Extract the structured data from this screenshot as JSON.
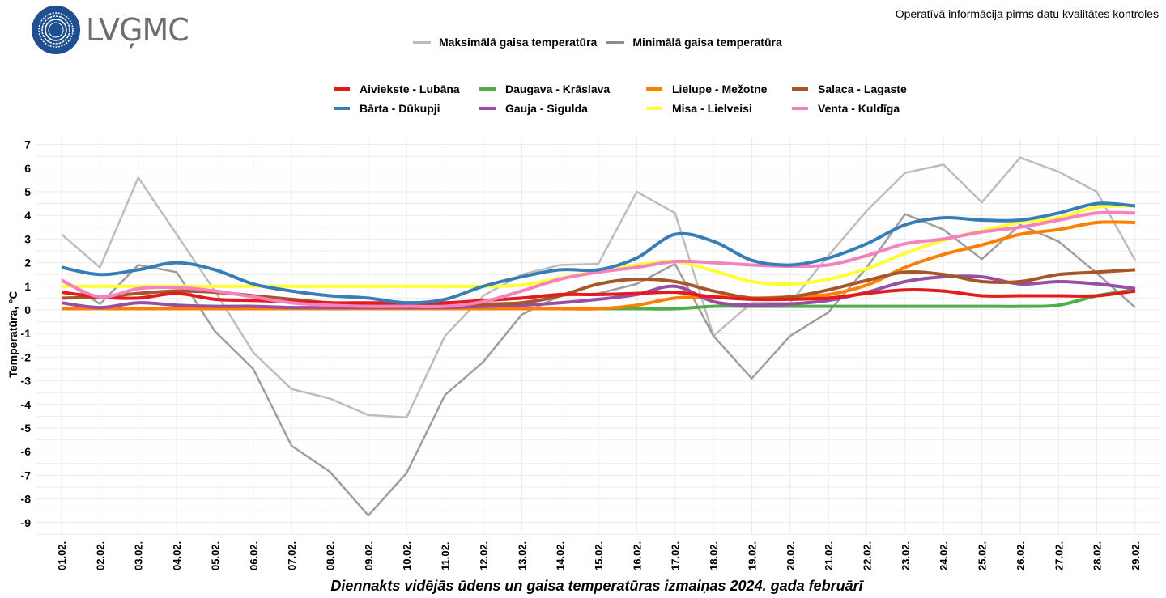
{
  "header": {
    "logo_text": "LVĢMC",
    "notice": "Operatīvā informācija pirms datu kvalitātes kontroles"
  },
  "chart_data": {
    "type": "line",
    "title": "Diennakts vidējās ūdens un gaisa temperatūras izmaiņas 2024. gada februārī",
    "xlabel": "Diennakts vidējās ūdens un gaisa temperatūras izmaiņas 2024. gada februārī",
    "ylabel": "Temperatūra, °C",
    "ylim": [
      -9.5,
      7.2
    ],
    "yticks": [
      7,
      6,
      5,
      4,
      3,
      2,
      1,
      0,
      -1,
      -2,
      -3,
      -4,
      -5,
      -6,
      -7,
      -8,
      -9
    ],
    "grid": true,
    "legend_position": "top",
    "categories": [
      "01.02.",
      "02.02.",
      "03.02.",
      "04.02.",
      "05.02.",
      "06.02.",
      "07.02.",
      "08.02.",
      "09.02.",
      "10.02.",
      "11.02.",
      "12.02.",
      "13.02.",
      "14.02.",
      "15.02.",
      "16.02.",
      "17.02.",
      "18.02.",
      "19.02.",
      "20.02.",
      "21.02.",
      "22.02.",
      "23.02.",
      "24.02.",
      "25.02.",
      "26.02.",
      "27.02.",
      "28.02.",
      "29.02."
    ],
    "air_series": [
      {
        "name": "Maksimālā gaisa temperatūra",
        "color": "#bdbdbd",
        "values": [
          3.2,
          1.8,
          5.6,
          3.2,
          0.8,
          -1.8,
          -3.35,
          -3.75,
          -4.45,
          -4.55,
          -1.1,
          0.6,
          1.5,
          1.9,
          1.95,
          5.0,
          4.1,
          -1.1,
          0.3,
          0.3,
          2.3,
          4.2,
          5.8,
          6.15,
          4.55,
          6.45,
          5.85,
          5.0,
          2.1
        ]
      },
      {
        "name": "Minimālā gaisa temperatūra",
        "color": "#9e9e9e",
        "values": [
          1.3,
          0.25,
          1.9,
          1.6,
          -0.9,
          -2.5,
          -5.75,
          -6.85,
          -8.7,
          -6.9,
          -3.6,
          -2.2,
          -0.2,
          0.6,
          0.7,
          1.1,
          1.95,
          -1.1,
          -2.9,
          -1.1,
          -0.1,
          1.8,
          4.05,
          3.4,
          2.15,
          3.6,
          2.9,
          1.55,
          0.1
        ]
      }
    ],
    "series": [
      {
        "name": "Aiviekste - Lubāna",
        "color": "#e41a1c",
        "values": [
          0.75,
          0.55,
          0.5,
          0.7,
          0.45,
          0.4,
          0.35,
          0.3,
          0.3,
          0.3,
          0.3,
          0.4,
          0.5,
          0.65,
          0.65,
          0.7,
          0.75,
          0.55,
          0.45,
          0.45,
          0.5,
          0.7,
          0.85,
          0.8,
          0.6,
          0.6,
          0.6,
          0.6,
          0.8
        ]
      },
      {
        "name": "Bārta - Dūkupji",
        "color": "#377eb8",
        "values": [
          1.8,
          1.5,
          1.7,
          2.0,
          1.7,
          1.1,
          0.8,
          0.6,
          0.5,
          0.3,
          0.45,
          1.0,
          1.4,
          1.7,
          1.7,
          2.2,
          3.2,
          2.9,
          2.1,
          1.9,
          2.2,
          2.8,
          3.6,
          3.9,
          3.8,
          3.8,
          4.1,
          4.5,
          4.4
        ]
      },
      {
        "name": "Daugava - Krāslava",
        "color": "#4daf4a",
        "values": [
          0.05,
          0.05,
          0.05,
          0.05,
          0.05,
          0.05,
          0.05,
          0.05,
          0.05,
          0.05,
          0.05,
          0.05,
          0.05,
          0.05,
          0.05,
          0.05,
          0.05,
          0.15,
          0.15,
          0.15,
          0.15,
          0.15,
          0.15,
          0.15,
          0.15,
          0.15,
          0.2,
          0.6,
          0.85
        ]
      },
      {
        "name": "Gauja - Sigulda",
        "color": "#984ea3",
        "values": [
          0.3,
          0.1,
          0.3,
          0.2,
          0.15,
          0.15,
          0.1,
          0.1,
          0.1,
          0.1,
          0.1,
          0.15,
          0.2,
          0.3,
          0.45,
          0.65,
          1.0,
          0.35,
          0.2,
          0.25,
          0.4,
          0.75,
          1.2,
          1.4,
          1.4,
          1.1,
          1.2,
          1.1,
          0.9
        ]
      },
      {
        "name": "Lielupe - Mežotne",
        "color": "#ff7f00",
        "values": [
          0.05,
          0.05,
          0.05,
          0.05,
          0.05,
          0.05,
          0.05,
          0.05,
          0.05,
          0.05,
          0.05,
          0.05,
          0.05,
          0.05,
          0.05,
          0.2,
          0.5,
          0.55,
          0.5,
          0.55,
          0.65,
          1.05,
          1.8,
          2.35,
          2.75,
          3.2,
          3.4,
          3.7,
          3.7
        ]
      },
      {
        "name": "Misa - Lielveisi",
        "color": "#ffff33",
        "values": [
          1.0,
          1.0,
          1.0,
          1.0,
          1.0,
          1.0,
          1.0,
          1.0,
          1.0,
          1.0,
          1.0,
          1.0,
          1.05,
          1.35,
          1.65,
          1.9,
          2.05,
          1.65,
          1.2,
          1.1,
          1.3,
          1.75,
          2.4,
          2.95,
          3.35,
          3.7,
          3.9,
          4.35,
          4.4
        ]
      },
      {
        "name": "Salaca - Lagaste",
        "color": "#a65628",
        "values": [
          0.5,
          0.55,
          0.7,
          0.8,
          0.75,
          0.6,
          0.45,
          0.3,
          0.25,
          0.2,
          0.2,
          0.25,
          0.3,
          0.6,
          1.1,
          1.3,
          1.2,
          0.8,
          0.5,
          0.55,
          0.85,
          1.25,
          1.6,
          1.5,
          1.2,
          1.2,
          1.5,
          1.6,
          1.7
        ]
      },
      {
        "name": "Venta - Kuldīga",
        "color": "#f781bf",
        "values": [
          1.25,
          0.55,
          0.9,
          0.95,
          0.8,
          0.55,
          0.3,
          0.2,
          0.15,
          0.15,
          0.15,
          0.35,
          0.8,
          1.3,
          1.6,
          1.8,
          2.05,
          2.0,
          1.9,
          1.85,
          1.9,
          2.3,
          2.8,
          3.0,
          3.3,
          3.5,
          3.8,
          4.1,
          4.1
        ]
      }
    ]
  }
}
